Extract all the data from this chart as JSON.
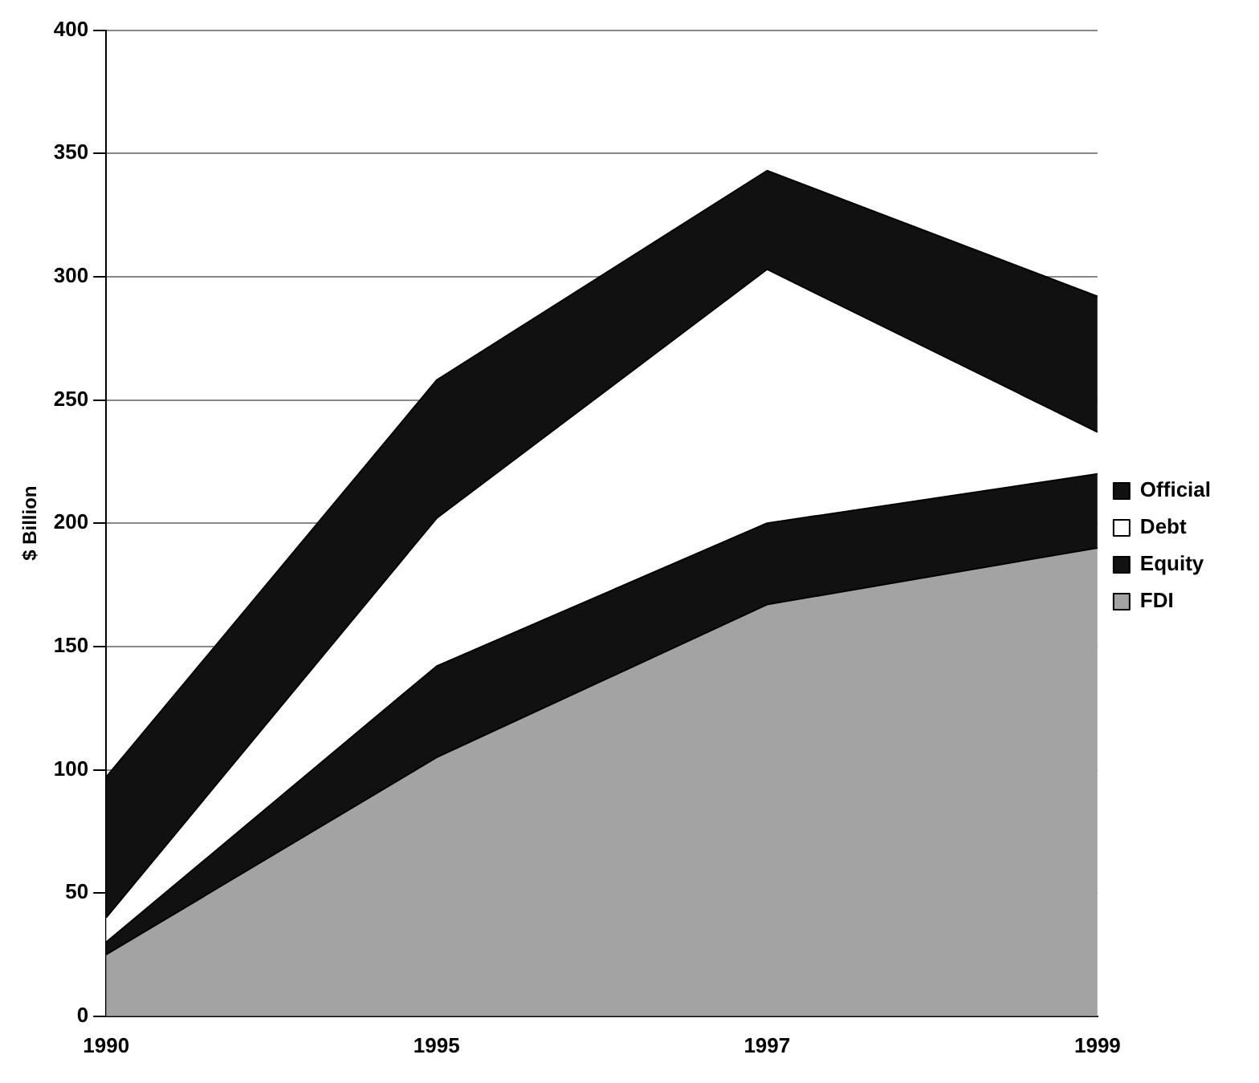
{
  "chart_data": {
    "type": "area",
    "stacked": true,
    "ylabel": "$ Billion",
    "categories": [
      "1990",
      "1995",
      "1997",
      "1999"
    ],
    "series": [
      {
        "name": "FDI",
        "color": "#a3a3a3",
        "values": [
          25,
          105,
          167,
          190
        ]
      },
      {
        "name": "Equity",
        "color": "#111111",
        "values": [
          5,
          37,
          33,
          30
        ]
      },
      {
        "name": "Debt",
        "color": "#ffffff",
        "values": [
          10,
          60,
          103,
          17
        ]
      },
      {
        "name": "Official",
        "color": "#111111",
        "values": [
          57,
          56,
          40,
          55
        ]
      }
    ],
    "ylim": [
      0,
      400
    ],
    "yticks": [
      0,
      50,
      100,
      150,
      200,
      250,
      300,
      350,
      400
    ],
    "grid": "y",
    "legend": "right"
  }
}
